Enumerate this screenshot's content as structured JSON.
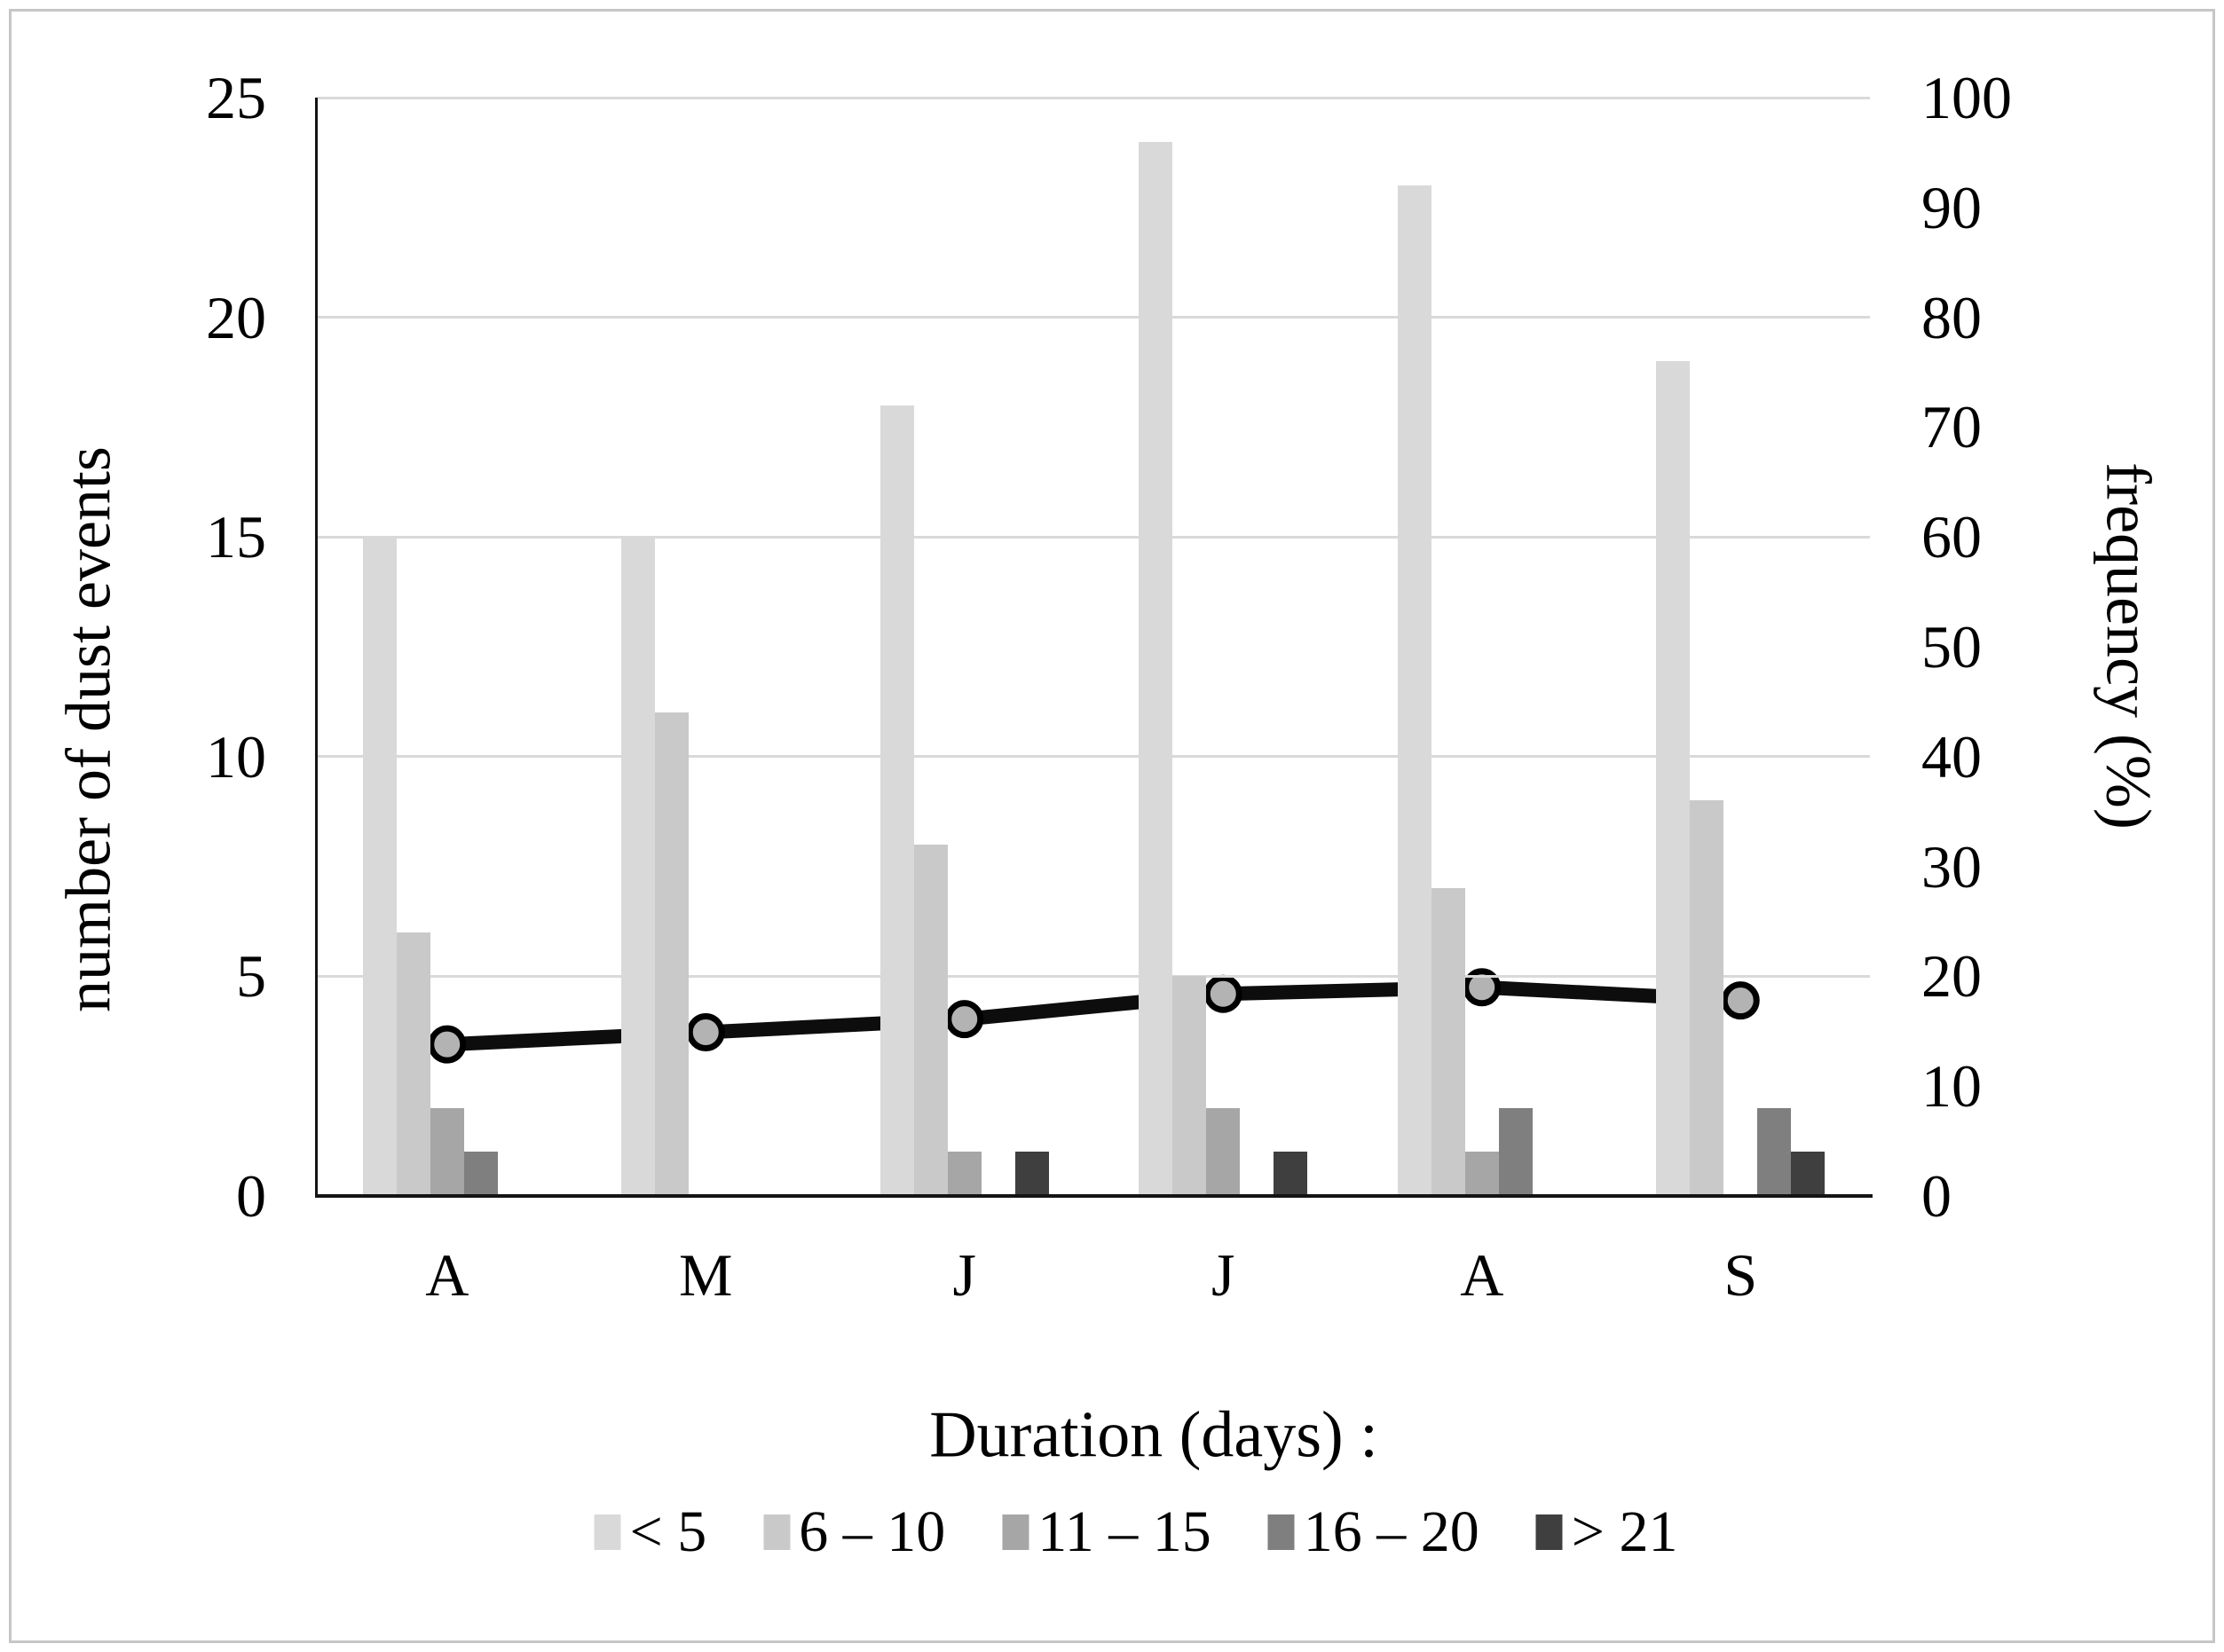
{
  "chart_data": {
    "type": "combo-bar-line",
    "categories": [
      "A",
      "M",
      "J",
      "J",
      "A",
      "S"
    ],
    "series": [
      {
        "name": "< 5",
        "type": "bar",
        "color": "#d9d9d9",
        "values": [
          15,
          15,
          18,
          24,
          23,
          19
        ]
      },
      {
        "name": "6 – 10",
        "type": "bar",
        "color": "#c9c9c9",
        "values": [
          6,
          11,
          8,
          5,
          7,
          9
        ]
      },
      {
        "name": "11 – 15",
        "type": "bar",
        "color": "#a6a6a6",
        "values": [
          2,
          0,
          1,
          2,
          1,
          0
        ]
      },
      {
        "name": "16 – 20",
        "type": "bar",
        "color": "#7f7f7f",
        "values": [
          1,
          0,
          0,
          0,
          2,
          2
        ]
      },
      {
        "name": "> 21",
        "type": "bar",
        "color": "#3f3f3f",
        "values": [
          0,
          0,
          1,
          1,
          0,
          1
        ]
      }
    ],
    "line_series": {
      "name": "frequency (%)",
      "axis": "right",
      "color": "#0d0d0d",
      "marker_fill": "#b3b3b3",
      "values": [
        13.8,
        14.9,
        16.1,
        18.4,
        19.0,
        17.8
      ]
    },
    "left_axis": {
      "label": "number of dust events",
      "min": 0,
      "max": 25,
      "tick_step": 5,
      "ticks": [
        0,
        5,
        10,
        15,
        20,
        25
      ]
    },
    "right_axis": {
      "label": "frequency (%)",
      "min": 0,
      "max": 100,
      "tick_step": 10,
      "ticks": [
        0,
        10,
        20,
        30,
        40,
        50,
        60,
        70,
        80,
        90,
        100
      ]
    },
    "grid_values": [
      5,
      10,
      15,
      20,
      25
    ],
    "legend": {
      "title": "Duration (days) :",
      "items": [
        {
          "label": "< 5",
          "color": "#d9d9d9"
        },
        {
          "label": "6 – 10",
          "color": "#c9c9c9"
        },
        {
          "label": "11 – 15",
          "color": "#a6a6a6"
        },
        {
          "label": "16 – 20",
          "color": "#7f7f7f"
        },
        {
          "label": "> 21",
          "color": "#3f3f3f"
        }
      ]
    },
    "layout": {
      "grid": "horizontal",
      "legend_position": "bottom",
      "background": "#ffffff"
    }
  }
}
